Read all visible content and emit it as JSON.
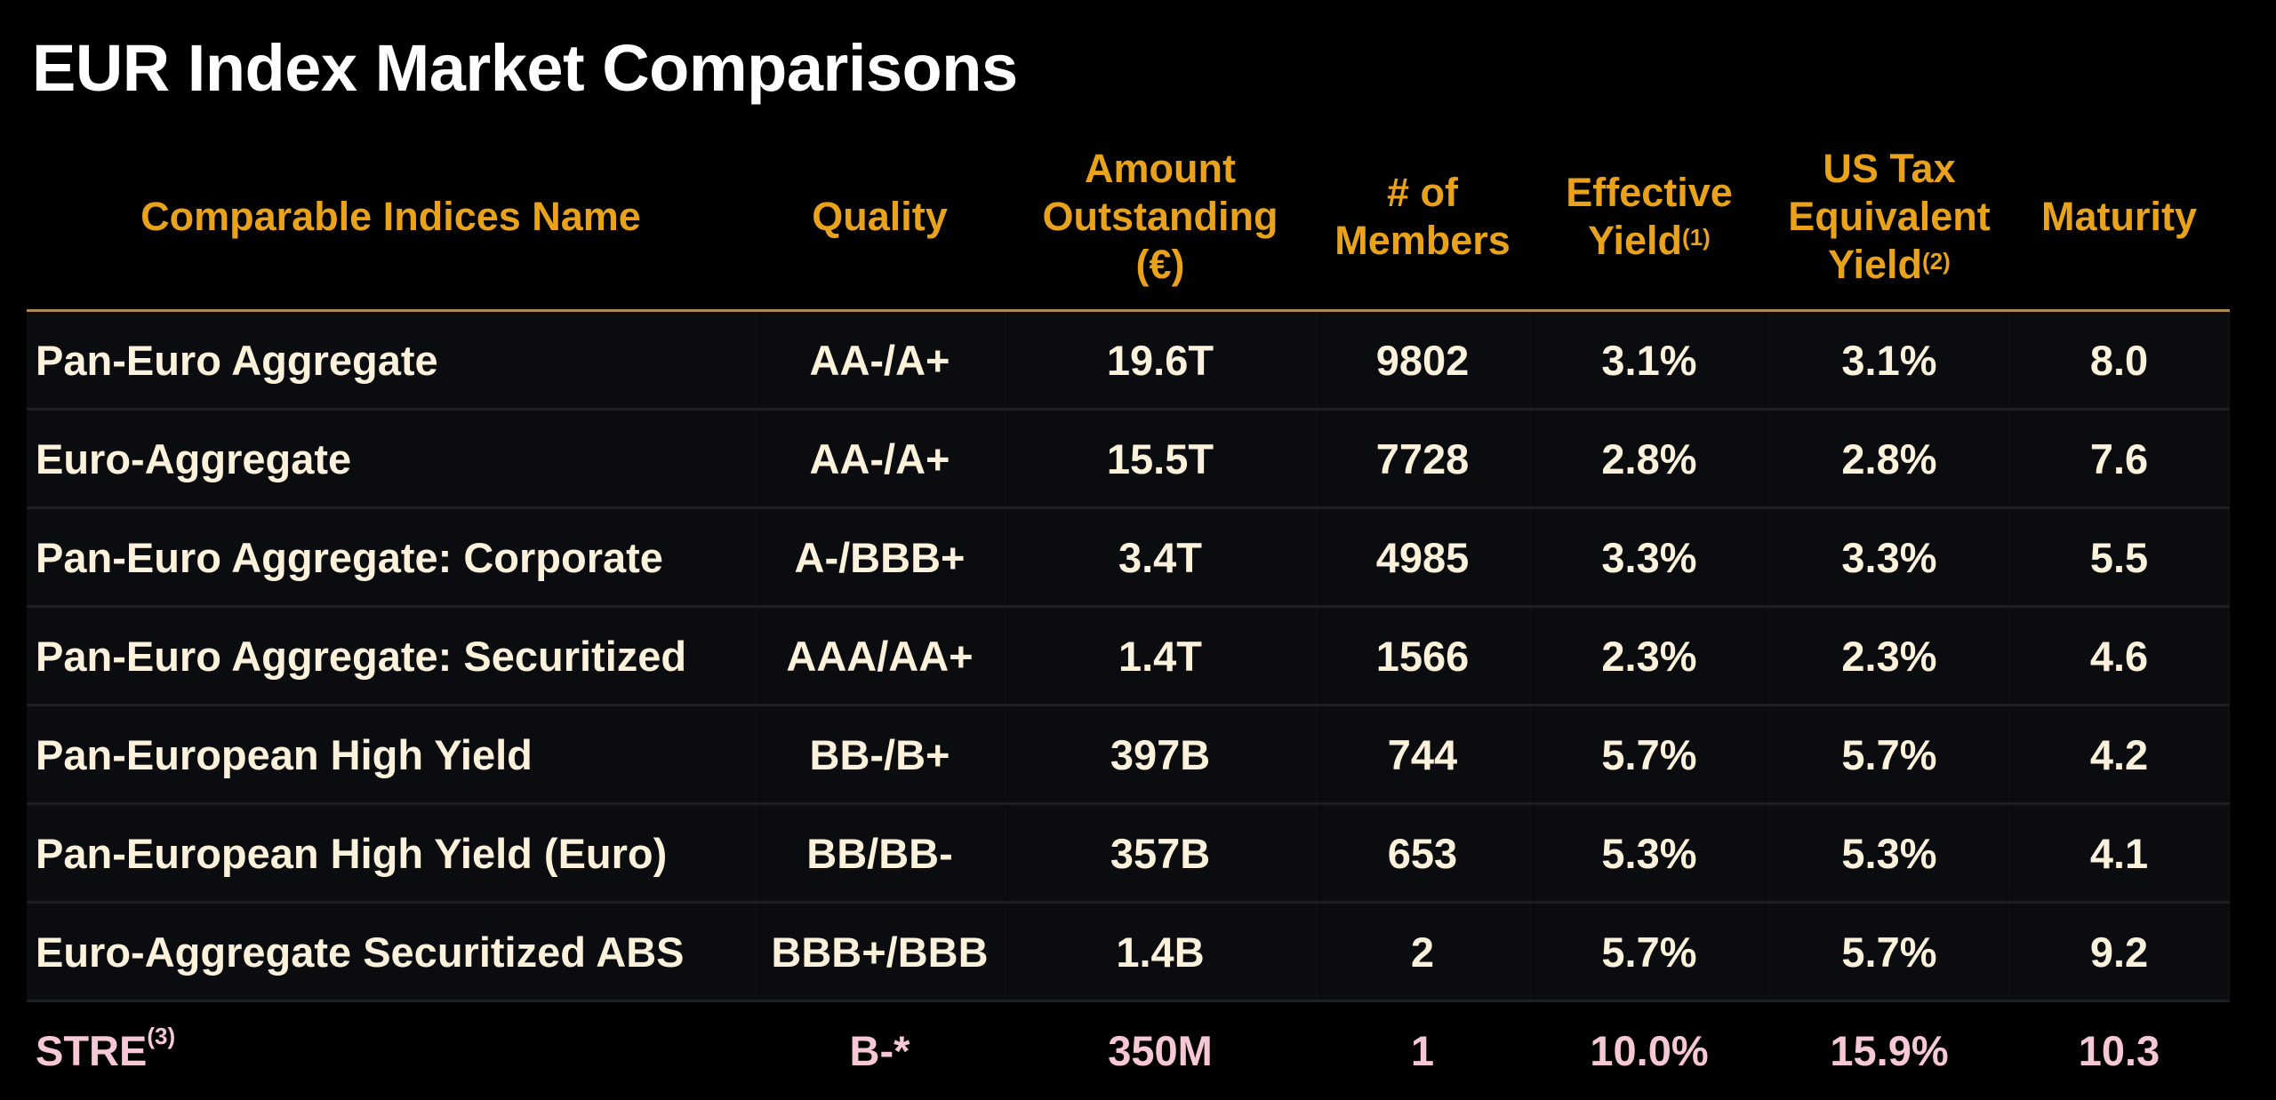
{
  "title": "EUR Index Market Comparisons",
  "colors": {
    "header": "#e9a21c",
    "body_text": "#fcf1da",
    "highlight_text": "#f6c8d6",
    "background": "#000000",
    "row_bg": "#0a0c10"
  },
  "table": {
    "headers": [
      {
        "label": "Comparable Indices Name",
        "sup": ""
      },
      {
        "label": "Quality",
        "sup": ""
      },
      {
        "label": "Amount Outstanding (€)",
        "sup": ""
      },
      {
        "label": "# of Members",
        "sup": ""
      },
      {
        "label": "Effective Yield",
        "sup": "(1)"
      },
      {
        "label": "US Tax Equivalent Yield",
        "sup": "(2)"
      },
      {
        "label": "Maturity",
        "sup": ""
      }
    ],
    "rows": [
      {
        "name": "Pan-Euro Aggregate",
        "sup": "",
        "quality": "AA-/A+",
        "amount": "19.6T",
        "members": "9802",
        "effective_yield": "3.1%",
        "us_tax_yield": "3.1%",
        "maturity": "8.0"
      },
      {
        "name": "Euro-Aggregate",
        "sup": "",
        "quality": "AA-/A+",
        "amount": "15.5T",
        "members": "7728",
        "effective_yield": "2.8%",
        "us_tax_yield": "2.8%",
        "maturity": "7.6"
      },
      {
        "name": "Pan-Euro Aggregate: Corporate",
        "sup": "",
        "quality": "A-/BBB+",
        "amount": "3.4T",
        "members": "4985",
        "effective_yield": "3.3%",
        "us_tax_yield": "3.3%",
        "maturity": "5.5"
      },
      {
        "name": "Pan-Euro Aggregate: Securitized",
        "sup": "",
        "quality": "AAA/AA+",
        "amount": "1.4T",
        "members": "1566",
        "effective_yield": "2.3%",
        "us_tax_yield": "2.3%",
        "maturity": "4.6"
      },
      {
        "name": "Pan-European High Yield",
        "sup": "",
        "quality": "BB-/B+",
        "amount": "397B",
        "members": "744",
        "effective_yield": "5.7%",
        "us_tax_yield": "5.7%",
        "maturity": "4.2"
      },
      {
        "name": "Pan-European High Yield (Euro)",
        "sup": "",
        "quality": "BB/BB-",
        "amount": "357B",
        "members": "653",
        "effective_yield": "5.3%",
        "us_tax_yield": "5.3%",
        "maturity": "4.1"
      },
      {
        "name": "Euro-Aggregate Securitized ABS",
        "sup": "",
        "quality": "BBB+/BBB",
        "amount": "1.4B",
        "members": "2",
        "effective_yield": "5.7%",
        "us_tax_yield": "5.7%",
        "maturity": "9.2"
      },
      {
        "name": "STRE",
        "sup": "(3)",
        "quality": "B-*",
        "amount": "350M",
        "members": "1",
        "effective_yield": "10.0%",
        "us_tax_yield": "15.9%",
        "maturity": "10.3",
        "highlight": true
      }
    ]
  }
}
